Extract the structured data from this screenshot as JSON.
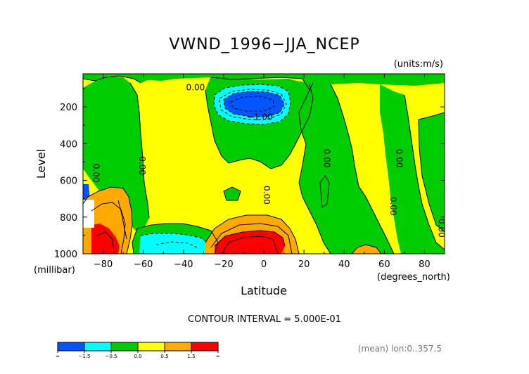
{
  "chart_data": {
    "type": "heatmap",
    "title": "VWND_1996−JJA_NCEP",
    "units_note": "(units:m/s)",
    "xlabel": "Latitude",
    "ylabel": "Level",
    "x_unit_note": "(degrees_north)",
    "y_unit_note": "(millibar)",
    "xlim": [
      -90,
      90
    ],
    "ylim": [
      1000,
      20
    ],
    "x_ticks": [
      -80,
      -60,
      -40,
      -20,
      0,
      20,
      40,
      60,
      80
    ],
    "x_tick_labels": [
      "−80",
      "−60",
      "−40",
      "−20",
      "0",
      "20",
      "40",
      "60",
      "80"
    ],
    "y_ticks": [
      200,
      400,
      600,
      800,
      1000
    ],
    "y_tick_labels": [
      "200",
      "400",
      "600",
      "800",
      "1000"
    ],
    "contour_interval_text": "CONTOUR INTERVAL = 5.000E-01",
    "footer_text": "(mean) lon:0..357.5",
    "contour_labels": [
      {
        "text": "0.00",
        "lat": -34,
        "lev": 110
      },
      {
        "text": "−1.00",
        "lat": -2,
        "lev": 270
      },
      {
        "text": "0.00",
        "lat": -85,
        "lev": 560
      },
      {
        "text": "0.00",
        "lat": -62,
        "lev": 520
      },
      {
        "text": "0.00",
        "lat": 30,
        "lev": 480
      },
      {
        "text": "0.00",
        "lat": 0,
        "lev": 680
      },
      {
        "text": "0.00",
        "lat": 66,
        "lev": 480
      },
      {
        "text": "0.00",
        "lat": 63,
        "lev": 740
      },
      {
        "text": "0.00",
        "lat": 87,
        "lev": 860
      }
    ],
    "colorbar": {
      "levels": [
        "∞",
        "−1.5",
        "−0.5",
        "0.0",
        "0.5",
        "1.5",
        "∞"
      ],
      "colors": [
        "#0055ff",
        "#00ffff",
        "#00cc00",
        "#ffff00",
        "#ffaa00",
        "#ff0000"
      ]
    },
    "fill_colors": {
      "very_negative": "#0055ff",
      "negative": "#00ffff",
      "near_zero_negative": "#00cc00",
      "near_zero_positive": "#ffff00",
      "positive": "#ffaa00",
      "very_positive": "#ff0000"
    }
  }
}
